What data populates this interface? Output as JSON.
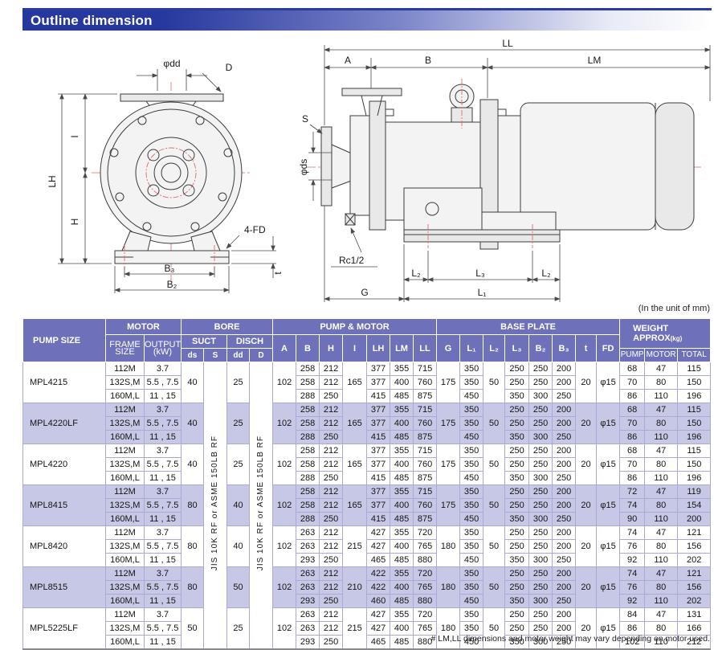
{
  "page": {
    "title": "Outline dimension",
    "unit_note": "(In the unit of mm)",
    "footnote": "# LM,LL dimensions and motor weight may vary depending on motor used."
  },
  "drawings": {
    "front": {
      "phi_dd": "φdd",
      "D": "D",
      "I": "I",
      "LH": "LH",
      "H": "H",
      "four_fd": "4-FD",
      "B3": "B₃",
      "B2": "B₂",
      "t": "t"
    },
    "side": {
      "LL": "LL",
      "A": "A",
      "B": "B",
      "LM": "LM",
      "S": "S",
      "phi_ds": "φds",
      "rc": "Rc1/2",
      "L2a": "L₂",
      "L3": "L₃",
      "L2b": "L₂",
      "G": "G",
      "L1": "L₁"
    }
  },
  "table": {
    "col_pump_size": "PUMP SIZE",
    "group_motor": "MOTOR",
    "group_bore": "BORE",
    "group_pump_motor": "PUMP & MOTOR",
    "group_base_plate": "BASE PLATE",
    "weight_line1": "WEIGHT",
    "weight_line2": "APPROX",
    "weight_unit": "(kg)",
    "frame_l1": "FRAME",
    "frame_l2": "SIZE",
    "output_l1": "OUTPUT",
    "output_l2": "(kW)",
    "suct": "SUCT",
    "disch": "DISCH",
    "ds": "ds",
    "S": "S",
    "dd": "dd",
    "D": "D",
    "pm_cols": [
      "A",
      "B",
      "H",
      "I",
      "LH",
      "LM",
      "LL"
    ],
    "bp_cols": [
      "G",
      "L₁",
      "L₂",
      "L₃",
      "B₂",
      "B₃",
      "t",
      "FD"
    ],
    "w_cols": [
      "PUMP",
      "MOTOR",
      "TOTAL"
    ],
    "flange_spec": "JIS 10K RF or ASME 150LB RF",
    "groups": [
      {
        "name": "MPL4215",
        "shaded": false,
        "frames": [
          {
            "frame": "112M",
            "output": "3.7"
          },
          {
            "frame": "132S,M",
            "output": "5.5 , 7.5"
          },
          {
            "frame": "160M,L",
            "output": "11 , 15"
          }
        ],
        "ds": "40",
        "dd": "25",
        "A": "102",
        "I": "165",
        "G": "175",
        "L2": "50",
        "t": "20",
        "FD": "φ15",
        "rows": [
          {
            "B": "258",
            "H": "212",
            "LH": "377",
            "LM": "355",
            "LL": "715",
            "L1": "350",
            "L3": "250",
            "B2": "250",
            "B3": "200",
            "pump": "68",
            "motor": "47",
            "total": "115"
          },
          {
            "B": "258",
            "H": "212",
            "LH": "377",
            "LM": "400",
            "LL": "760",
            "L1": "350",
            "L3": "250",
            "B2": "250",
            "B3": "200",
            "pump": "70",
            "motor": "80",
            "total": "150"
          },
          {
            "B": "288",
            "H": "250",
            "LH": "415",
            "LM": "485",
            "LL": "875",
            "L1": "450",
            "L3": "350",
            "B2": "300",
            "B3": "250",
            "pump": "86",
            "motor": "110",
            "total": "196"
          }
        ]
      },
      {
        "name": "MPL4220LF",
        "shaded": true,
        "frames": [
          {
            "frame": "112M",
            "output": "3.7"
          },
          {
            "frame": "132S,M",
            "output": "5.5 , 7.5"
          },
          {
            "frame": "160M,L",
            "output": "11 , 15"
          }
        ],
        "ds": "40",
        "dd": "25",
        "A": "102",
        "I": "165",
        "G": "175",
        "L2": "50",
        "t": "20",
        "FD": "φ15",
        "rows": [
          {
            "B": "258",
            "H": "212",
            "LH": "377",
            "LM": "355",
            "LL": "715",
            "L1": "350",
            "L3": "250",
            "B2": "250",
            "B3": "200",
            "pump": "68",
            "motor": "47",
            "total": "115"
          },
          {
            "B": "258",
            "H": "212",
            "LH": "377",
            "LM": "400",
            "LL": "760",
            "L1": "350",
            "L3": "250",
            "B2": "250",
            "B3": "200",
            "pump": "70",
            "motor": "80",
            "total": "150"
          },
          {
            "B": "288",
            "H": "250",
            "LH": "415",
            "LM": "485",
            "LL": "875",
            "L1": "450",
            "L3": "350",
            "B2": "300",
            "B3": "250",
            "pump": "86",
            "motor": "110",
            "total": "196"
          }
        ]
      },
      {
        "name": "MPL4220",
        "shaded": false,
        "frames": [
          {
            "frame": "112M",
            "output": "3.7"
          },
          {
            "frame": "132S,M",
            "output": "5.5 , 7.5"
          },
          {
            "frame": "160M,L",
            "output": "11 , 15"
          }
        ],
        "ds": "40",
        "dd": "25",
        "A": "102",
        "I": "165",
        "G": "175",
        "L2": "50",
        "t": "20",
        "FD": "φ15",
        "rows": [
          {
            "B": "258",
            "H": "212",
            "LH": "377",
            "LM": "355",
            "LL": "715",
            "L1": "350",
            "L3": "250",
            "B2": "250",
            "B3": "200",
            "pump": "68",
            "motor": "47",
            "total": "115"
          },
          {
            "B": "258",
            "H": "212",
            "LH": "377",
            "LM": "400",
            "LL": "760",
            "L1": "350",
            "L3": "250",
            "B2": "250",
            "B3": "200",
            "pump": "70",
            "motor": "80",
            "total": "150"
          },
          {
            "B": "288",
            "H": "250",
            "LH": "415",
            "LM": "485",
            "LL": "875",
            "L1": "450",
            "L3": "350",
            "B2": "300",
            "B3": "250",
            "pump": "86",
            "motor": "110",
            "total": "196"
          }
        ]
      },
      {
        "name": "MPL8415",
        "shaded": true,
        "frames": [
          {
            "frame": "112M",
            "output": "3.7"
          },
          {
            "frame": "132S,M",
            "output": "5.5 , 7.5"
          },
          {
            "frame": "160M,L",
            "output": "11 , 15"
          }
        ],
        "ds": "80",
        "dd": "40",
        "A": "102",
        "I": "165",
        "G": "175",
        "L2": "50",
        "t": "20",
        "FD": "φ15",
        "rows": [
          {
            "B": "258",
            "H": "212",
            "LH": "377",
            "LM": "355",
            "LL": "715",
            "L1": "350",
            "L3": "250",
            "B2": "250",
            "B3": "200",
            "pump": "72",
            "motor": "47",
            "total": "119"
          },
          {
            "B": "258",
            "H": "212",
            "LH": "377",
            "LM": "400",
            "LL": "760",
            "L1": "350",
            "L3": "250",
            "B2": "250",
            "B3": "200",
            "pump": "74",
            "motor": "80",
            "total": "154"
          },
          {
            "B": "288",
            "H": "250",
            "LH": "415",
            "LM": "485",
            "LL": "875",
            "L1": "450",
            "L3": "350",
            "B2": "300",
            "B3": "250",
            "pump": "90",
            "motor": "110",
            "total": "200"
          }
        ]
      },
      {
        "name": "MPL8420",
        "shaded": false,
        "frames": [
          {
            "frame": "112M",
            "output": "3.7"
          },
          {
            "frame": "132S,M",
            "output": "5.5 , 7.5"
          },
          {
            "frame": "160M,L",
            "output": "11 , 15"
          }
        ],
        "ds": "80",
        "dd": "40",
        "A": "102",
        "I": "215",
        "G": "180",
        "L2": "50",
        "t": "20",
        "FD": "φ15",
        "rows": [
          {
            "B": "263",
            "H": "212",
            "LH": "427",
            "LM": "355",
            "LL": "720",
            "L1": "350",
            "L3": "250",
            "B2": "250",
            "B3": "200",
            "pump": "74",
            "motor": "47",
            "total": "121"
          },
          {
            "B": "263",
            "H": "212",
            "LH": "427",
            "LM": "400",
            "LL": "765",
            "L1": "350",
            "L3": "250",
            "B2": "250",
            "B3": "200",
            "pump": "76",
            "motor": "80",
            "total": "156"
          },
          {
            "B": "293",
            "H": "250",
            "LH": "465",
            "LM": "485",
            "LL": "880",
            "L1": "450",
            "L3": "350",
            "B2": "300",
            "B3": "250",
            "pump": "92",
            "motor": "110",
            "total": "202"
          }
        ]
      },
      {
        "name": "MPL8515",
        "shaded": true,
        "frames": [
          {
            "frame": "112M",
            "output": "3.7"
          },
          {
            "frame": "132S,M",
            "output": "5.5 , 7.5"
          },
          {
            "frame": "160M,L",
            "output": "11 , 15"
          }
        ],
        "ds": "80",
        "dd": "50",
        "A": "102",
        "I": "210",
        "G": "180",
        "L2": "50",
        "t": "20",
        "FD": "φ15",
        "rows": [
          {
            "B": "263",
            "H": "212",
            "LH": "422",
            "LM": "355",
            "LL": "720",
            "L1": "350",
            "L3": "250",
            "B2": "250",
            "B3": "200",
            "pump": "74",
            "motor": "47",
            "total": "121"
          },
          {
            "B": "263",
            "H": "212",
            "LH": "422",
            "LM": "400",
            "LL": "765",
            "L1": "350",
            "L3": "250",
            "B2": "250",
            "B3": "200",
            "pump": "76",
            "motor": "80",
            "total": "156"
          },
          {
            "B": "293",
            "H": "250",
            "LH": "460",
            "LM": "485",
            "LL": "880",
            "L1": "450",
            "L3": "350",
            "B2": "300",
            "B3": "250",
            "pump": "92",
            "motor": "110",
            "total": "202"
          }
        ]
      },
      {
        "name": "MPL5225LF",
        "shaded": false,
        "frames": [
          {
            "frame": "112M",
            "output": "3.7"
          },
          {
            "frame": "132S,M",
            "output": "5.5 , 7.5"
          },
          {
            "frame": "160M,L",
            "output": "11 , 15"
          }
        ],
        "ds": "50",
        "dd": "25",
        "A": "102",
        "I": "215",
        "G": "180",
        "L2": "50",
        "t": "20",
        "FD": "φ15",
        "rows": [
          {
            "B": "263",
            "H": "212",
            "LH": "427",
            "LM": "355",
            "LL": "720",
            "L1": "350",
            "L3": "250",
            "B2": "250",
            "B3": "200",
            "pump": "84",
            "motor": "47",
            "total": "131"
          },
          {
            "B": "263",
            "H": "212",
            "LH": "427",
            "LM": "400",
            "LL": "765",
            "L1": "350",
            "L3": "250",
            "B2": "250",
            "B3": "200",
            "pump": "86",
            "motor": "80",
            "total": "166"
          },
          {
            "B": "293",
            "H": "250",
            "LH": "465",
            "LM": "485",
            "LL": "880",
            "L1": "450",
            "L3": "350",
            "B2": "300",
            "B3": "250",
            "pump": "102",
            "motor": "110",
            "total": "212"
          }
        ]
      }
    ]
  }
}
